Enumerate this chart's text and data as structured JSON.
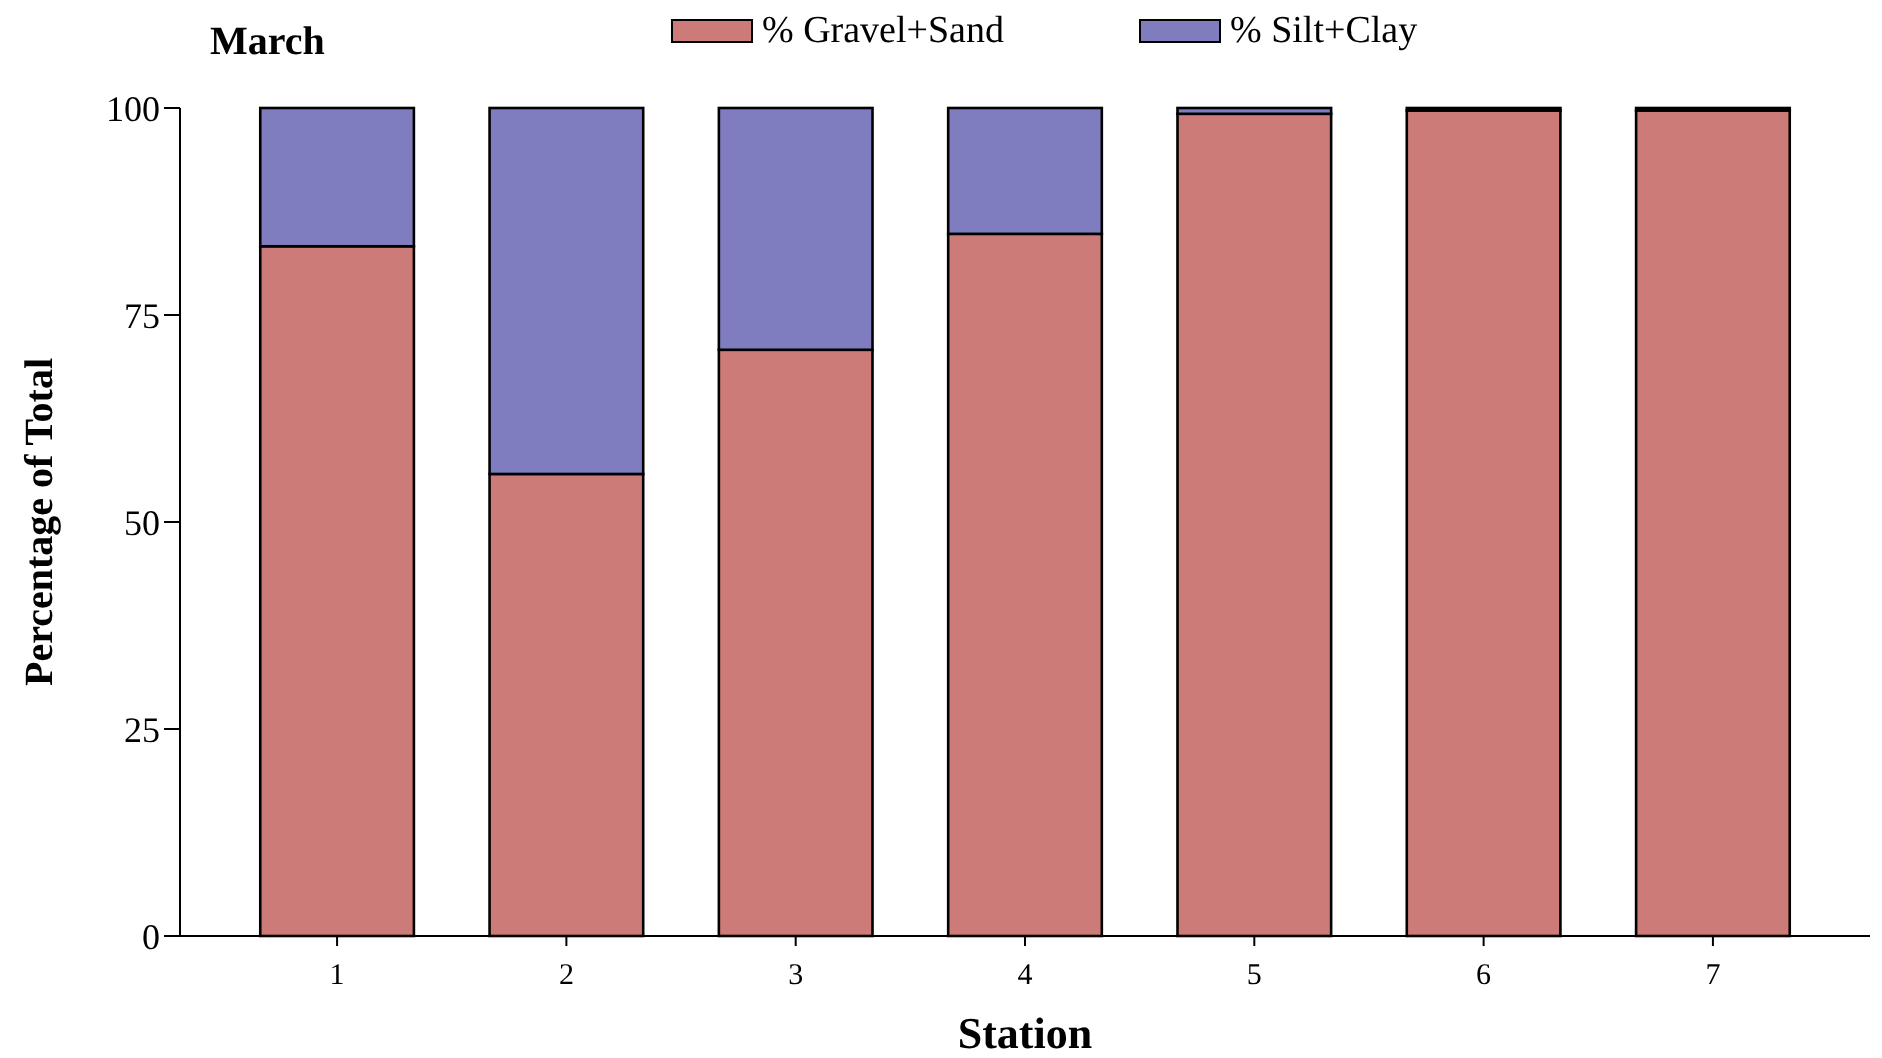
{
  "chart_data": {
    "type": "bar",
    "title": "March",
    "xlabel": "Station",
    "ylabel": "Percentage of Total",
    "categories": [
      "1",
      "2",
      "3",
      "4",
      "5",
      "6",
      "7"
    ],
    "stacked": true,
    "series": [
      {
        "name": "% Gravel+Sand",
        "color": "#cd7b78",
        "values": [
          83.3,
          55.8,
          70.8,
          84.8,
          99.3,
          99.7,
          99.7
        ]
      },
      {
        "name": "% Silt+Clay",
        "color": "#7f7dbf",
        "values": [
          16.7,
          44.2,
          29.2,
          15.2,
          0.7,
          0.3,
          0.3
        ]
      }
    ],
    "ylim": [
      0,
      100
    ],
    "yticks": [
      0,
      25,
      50,
      75,
      100
    ],
    "grid": false,
    "legend": "top"
  }
}
